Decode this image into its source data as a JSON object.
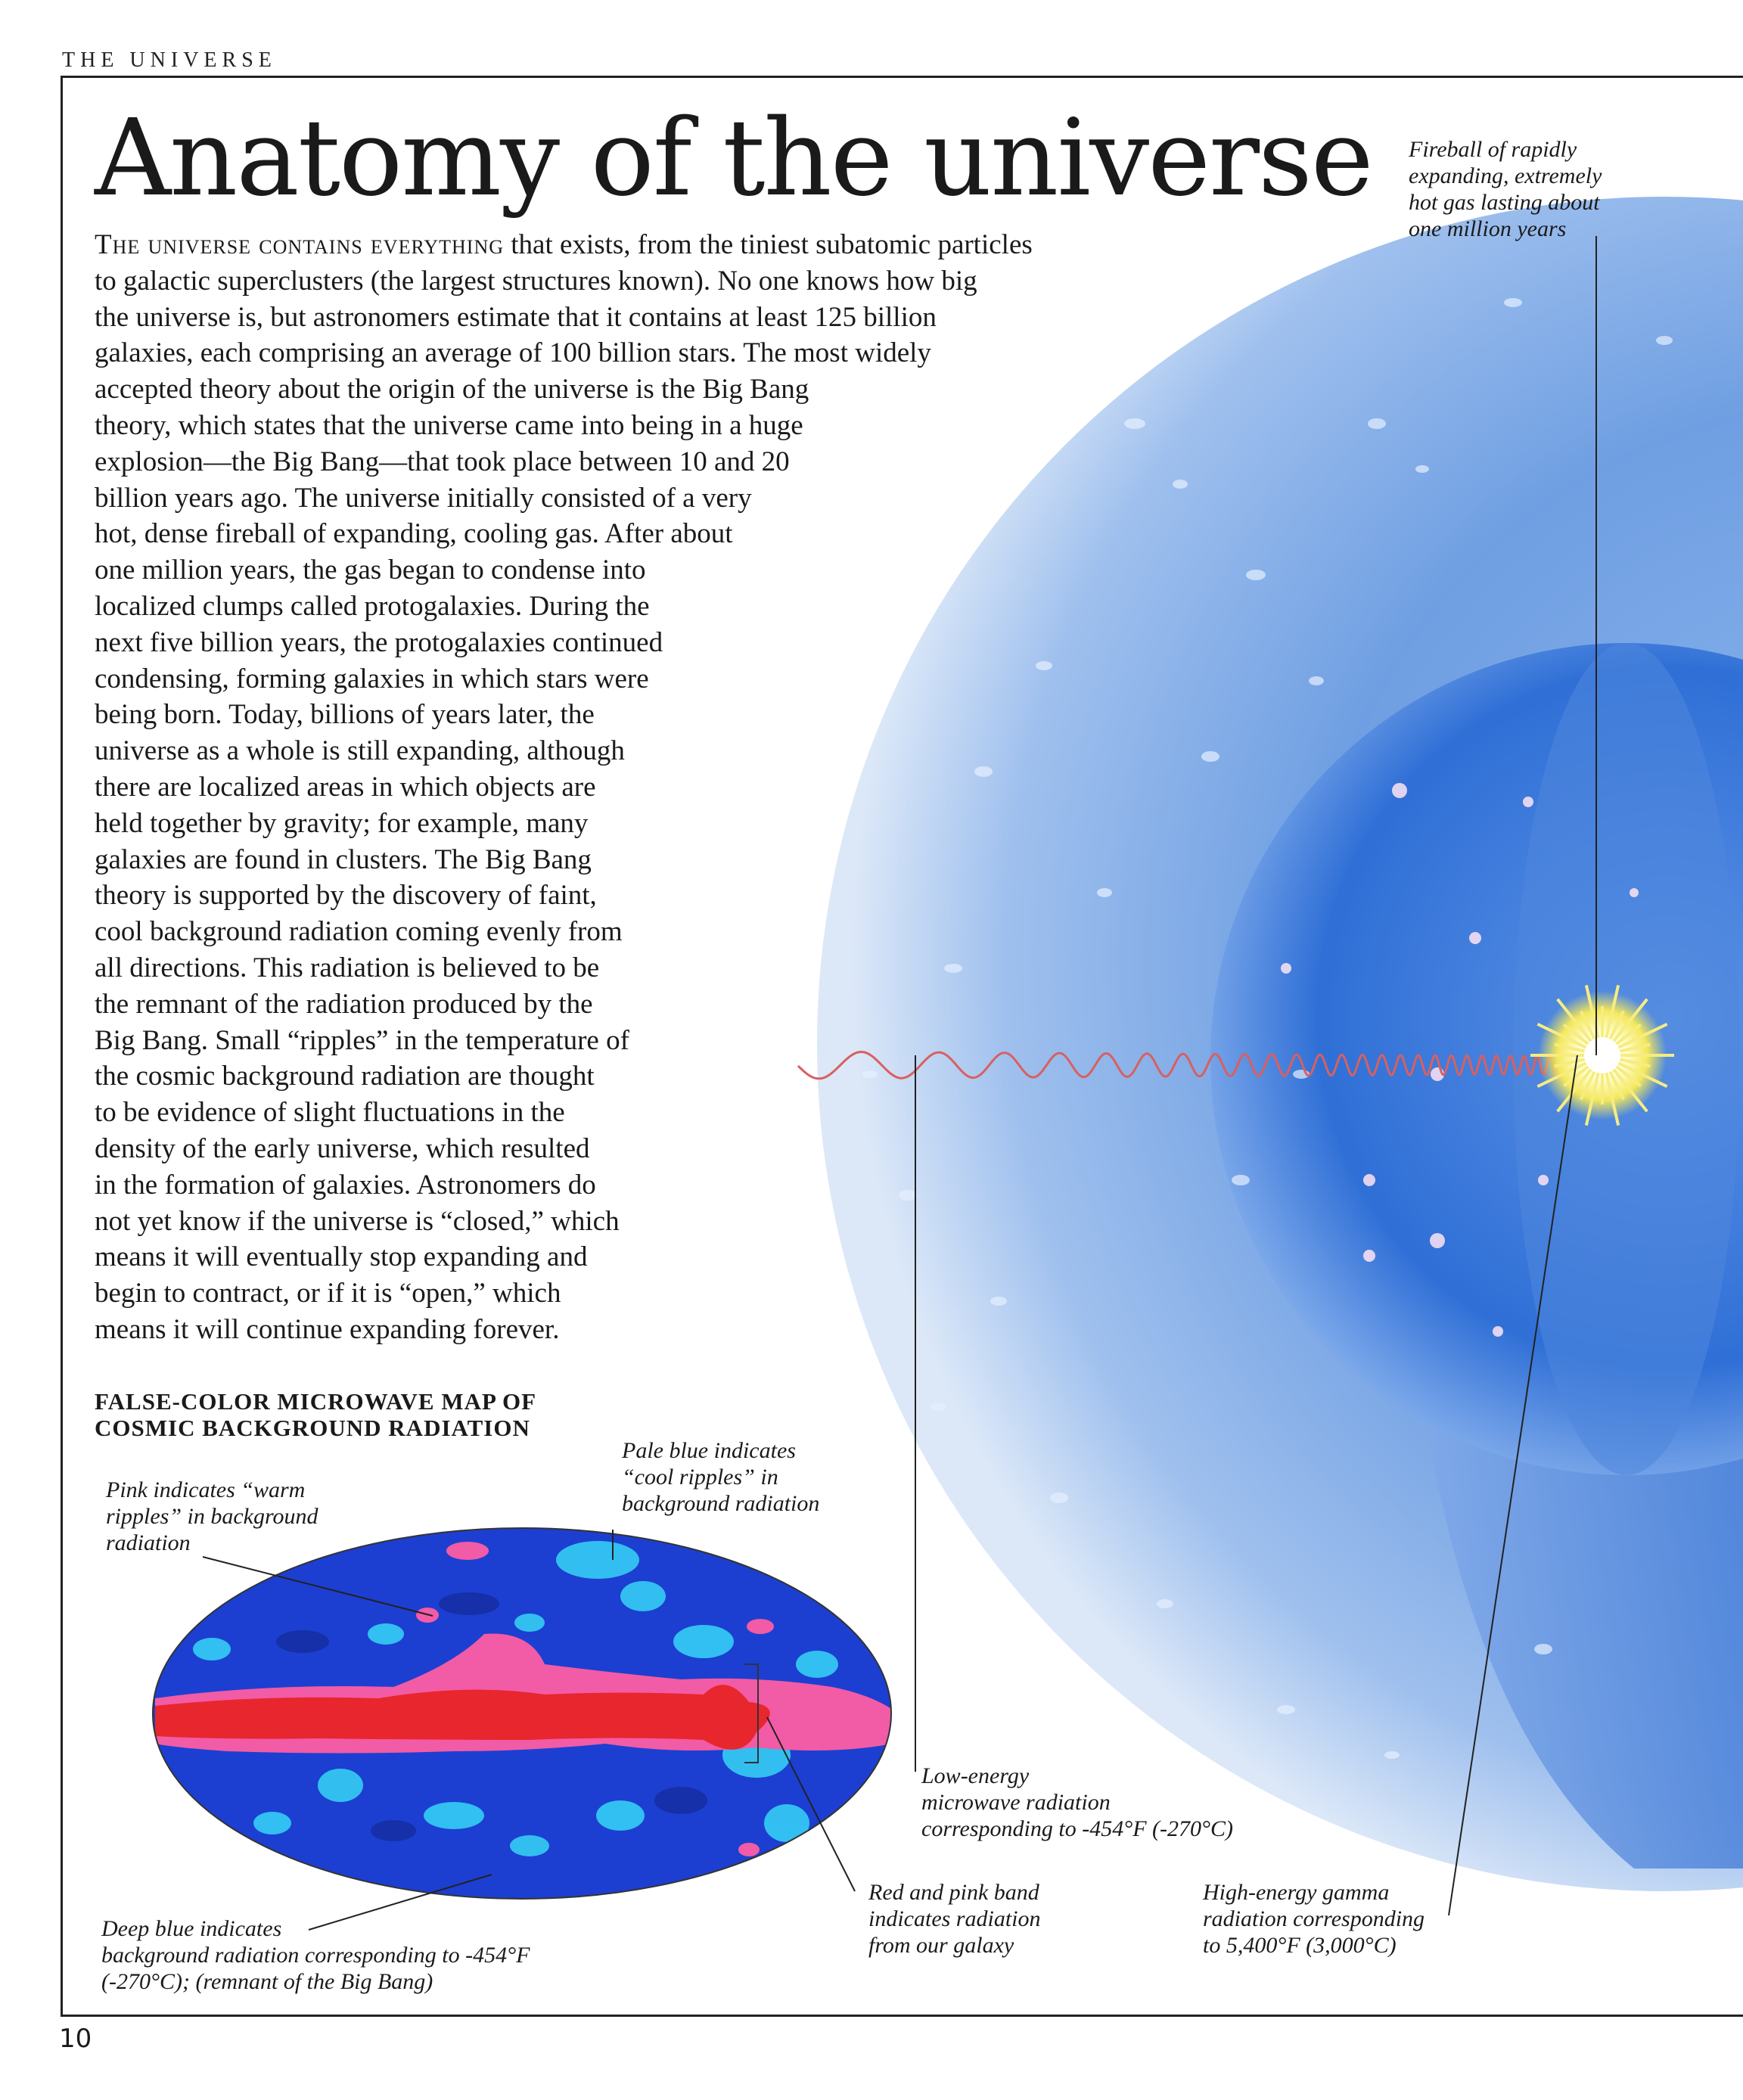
{
  "running_head": "THE UNIVERSE",
  "page_title": "Anatomy of the universe",
  "intro": {
    "lead": "The universe contains everything",
    "lines": [
      " that exists, from the tiniest subatomic particles",
      "to galactic superclusters (the largest structures known). No one knows how big",
      "the universe is, but astronomers estimate that it contains at least 125 billion",
      "galaxies, each comprising an average of 100 billion stars. The most widely",
      "accepted theory about the origin of the universe is the Big Bang",
      "theory, which states that the universe came into being in a huge",
      "explosion—the Big Bang—that took place between 10 and 20",
      "billion years ago. The universe initially consisted of a very",
      "hot, dense fireball of expanding, cooling gas. After about",
      "one million years, the gas began to condense into",
      "localized clumps called protogalaxies. During the",
      "next five billion years, the protogalaxies continued",
      "condensing, forming galaxies in which stars were",
      "being born. Today, billions of years later, the",
      "universe as a whole is still expanding, although",
      "there are localized areas in which objects are",
      "held together by gravity; for example, many",
      "galaxies are found in clusters. The Big Bang",
      "theory is supported by the discovery of faint,",
      "cool background radiation coming evenly from",
      "all directions. This radiation is believed to be",
      "the remnant of the radiation produced by the",
      "Big Bang. Small “ripples” in the temperature of",
      "the cosmic background radiation are thought",
      "to be evidence of slight fluctuations in the",
      "density of the early universe, which resulted",
      "in the formation of galaxies. Astronomers do",
      "not yet know if the universe is “closed,” which",
      "means it will eventually stop expanding and",
      "begin to contract, or if it is “open,” which",
      "means it will continue expanding forever."
    ]
  },
  "map_heading": [
    "FALSE-COLOR MICROWAVE MAP OF",
    "COSMIC BACKGROUND RADIATION"
  ],
  "captions": {
    "fireball": [
      "Fireball of  rapidly",
      "expanding, extremely",
      "hot gas lasting about",
      "one million years"
    ],
    "pink": [
      "Pink indicates “warm",
      "ripples” in background",
      "radiation"
    ],
    "pale_blue": [
      "Pale blue indicates",
      "“cool ripples” in",
      "background radiation"
    ],
    "low_energy": [
      "Low-energy",
      "microwave radiation",
      "corresponding to -454°F (-270°C)"
    ],
    "red_pink": [
      "Red and pink band",
      "indicates radiation",
      "from our galaxy"
    ],
    "gamma": [
      "High-energy gamma",
      "radiation corresponding",
      "to 5,400°F (3,000°C)"
    ],
    "deep_blue": [
      "Deep blue indicates",
      "background radiation corresponding to -454°F",
      "(-270°C); (remnant of  the Big Bang)"
    ]
  },
  "page_number": "10",
  "colors": {
    "outer_sphere": "#6f9fe2",
    "inner_sphere": "#2f6fd6",
    "map_deep_blue": "#1c3fd1",
    "map_pale_blue": "#34c6f2",
    "map_pink": "#f25ba5",
    "map_red": "#e8262d",
    "wave": "#d86060",
    "burst": "#f4e85a"
  }
}
